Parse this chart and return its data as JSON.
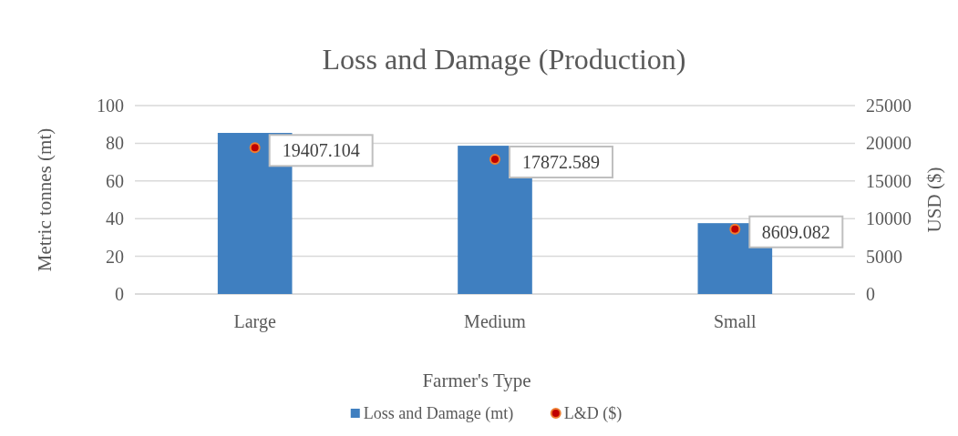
{
  "chart_data": {
    "type": "bar",
    "title": "Loss and Damage (Production)",
    "xlabel": "Farmer's Type",
    "ylabel": "Metric tonnes (mt)",
    "y2label": "USD ($)",
    "categories": [
      "Large",
      "Medium",
      "Small"
    ],
    "series": [
      {
        "name": "Loss and Damage (mt)",
        "color": "#3f7fc0",
        "values": [
          85.5,
          78.7,
          37.6
        ]
      },
      {
        "name": "L&D ($)",
        "type": "scatter",
        "axis": "y2",
        "color": "#c00000",
        "values": [
          19407.104,
          17872.589,
          8609.082
        ],
        "value_labels": [
          "19407.104",
          "17872.589",
          "8609.082"
        ]
      }
    ],
    "ylim": [
      0,
      100
    ],
    "yticks": [
      0,
      20,
      40,
      60,
      80,
      100
    ],
    "y2lim": [
      0,
      25000
    ],
    "y2ticks": [
      0,
      5000,
      10000,
      15000,
      20000,
      25000
    ],
    "grid": "y",
    "legend": "bottom",
    "marker": "circle"
  }
}
